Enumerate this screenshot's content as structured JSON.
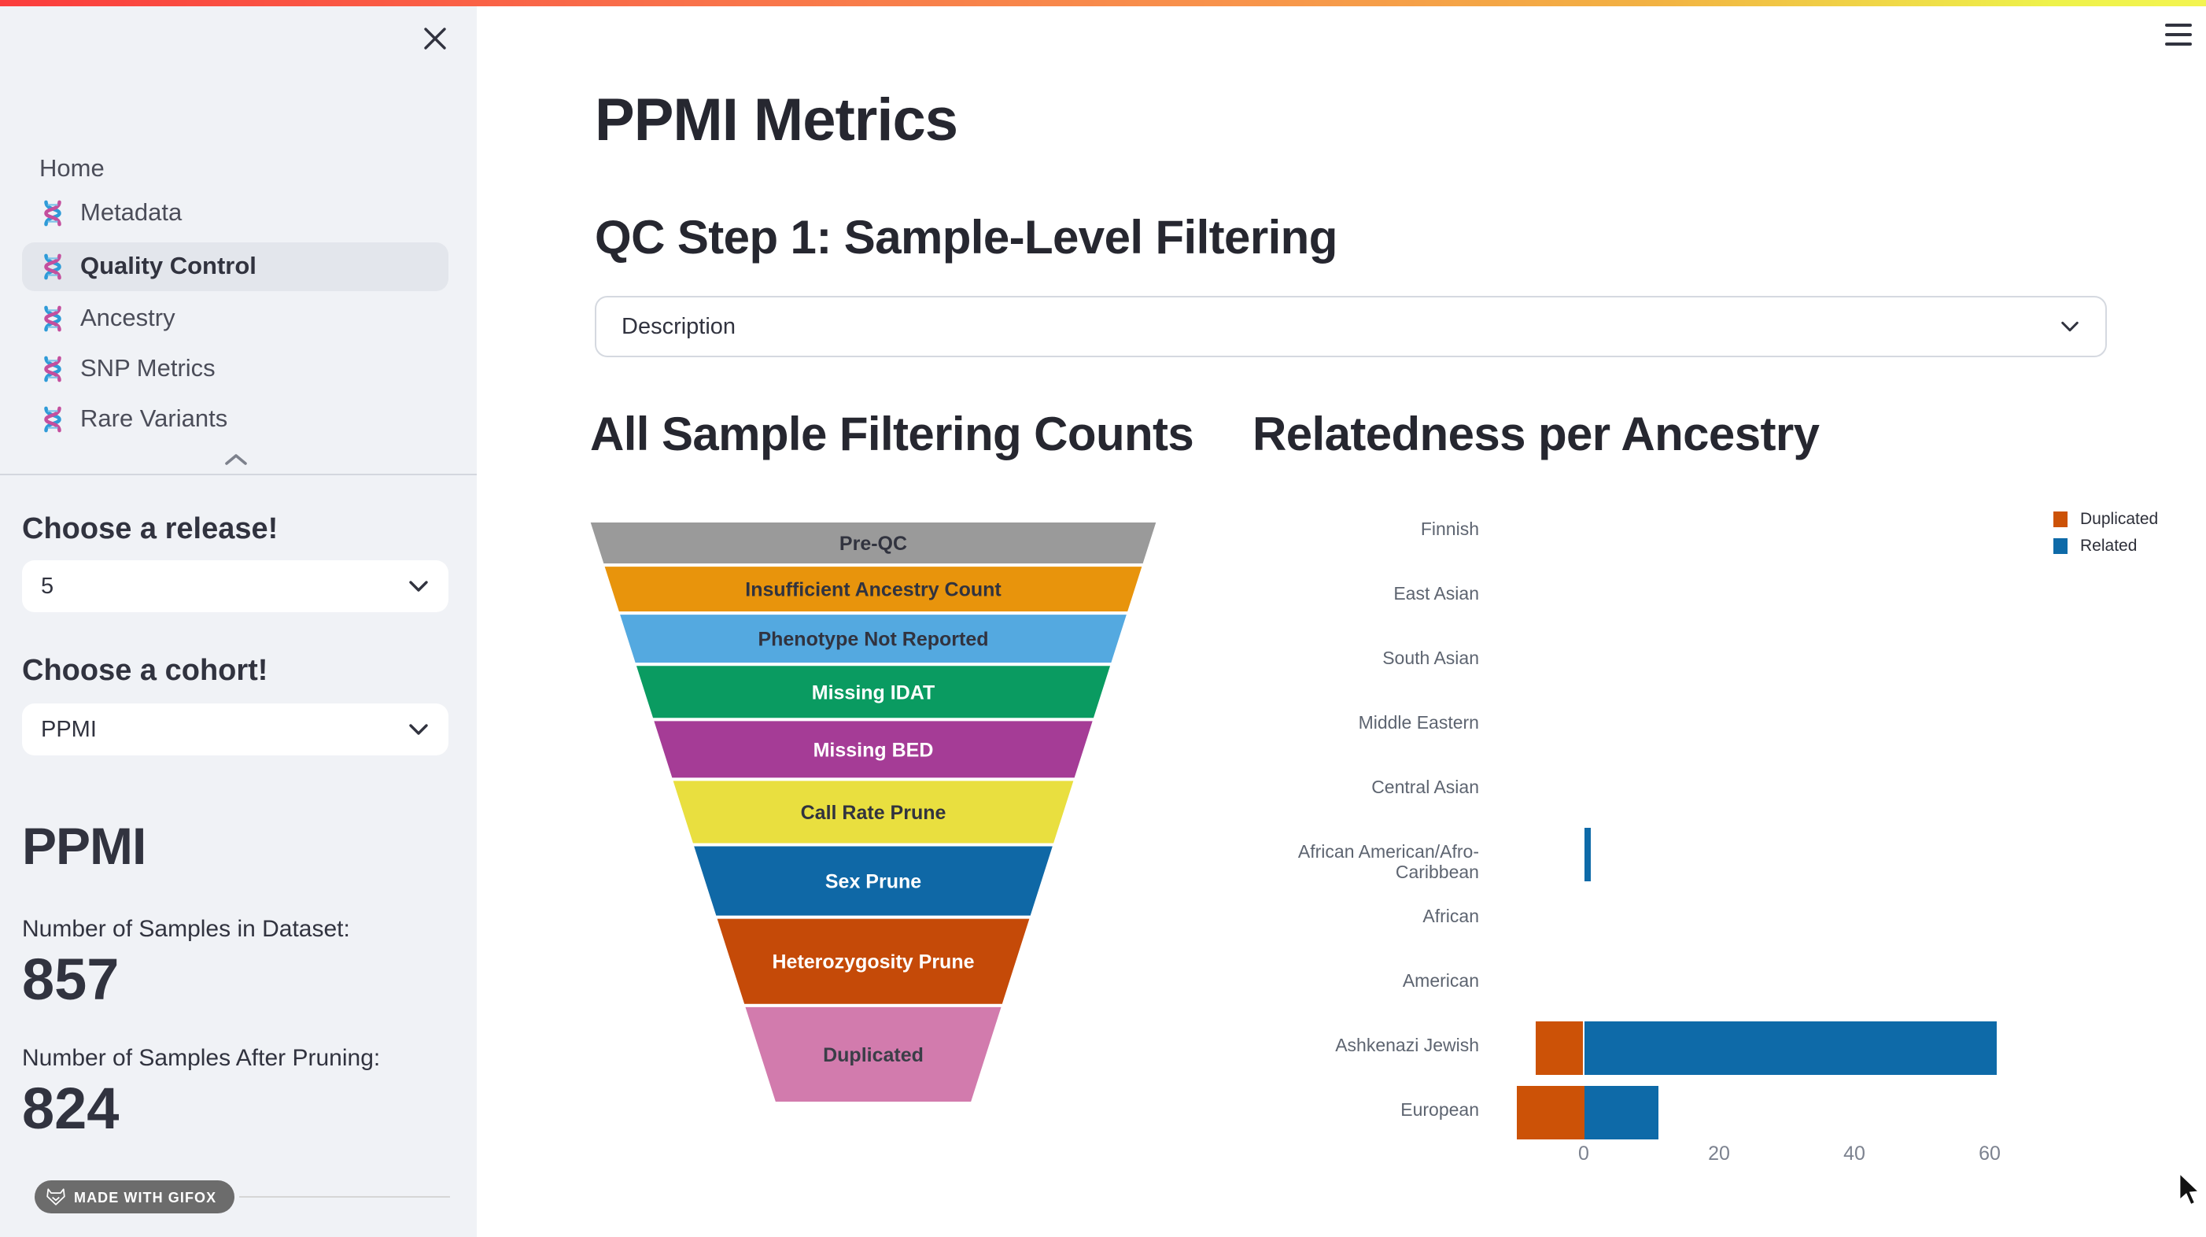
{
  "sidebar": {
    "nav": {
      "home_label": "Home",
      "items": [
        {
          "label": "Metadata",
          "active": false
        },
        {
          "label": "Quality Control",
          "active": true
        },
        {
          "label": "Ancestry",
          "active": false
        },
        {
          "label": "SNP Metrics",
          "active": false
        },
        {
          "label": "Rare Variants",
          "active": false
        }
      ]
    },
    "release_label": "Choose a release!",
    "release_value": "5",
    "cohort_label": "Choose a cohort!",
    "cohort_value": "PPMI",
    "cohort_heading": "PPMI",
    "samples_in_dataset_label": "Number of Samples in Dataset:",
    "samples_in_dataset_value": "857",
    "samples_after_pruning_label": "Number of Samples After Pruning:",
    "samples_after_pruning_value": "824",
    "badge_text": "MADE WITH GIFOX"
  },
  "main": {
    "title": "PPMI Metrics",
    "section_heading": "QC Step 1: Sample-Level Filtering",
    "expander_label": "Description",
    "left_chart_heading": "All Sample Filtering Counts",
    "right_chart_heading": "Relatedness per Ancestry"
  },
  "colors": {
    "decoration_gradient": [
      "#fb3d3d",
      "#f8924c",
      "#eef24a"
    ],
    "sidebar_bg": "#f0f2f6",
    "active_nav_bg": "#e3e6ec",
    "text": "#31333f",
    "duplicated_orange": "#cc5207",
    "related_blue": "#0e6aa8"
  },
  "chart_data": [
    {
      "type": "funnel",
      "title": "All Sample Filtering Counts",
      "stages": [
        "Pre-QC",
        "Insufficient Ancestry Count",
        "Phenotype Not Reported",
        "Missing IDAT",
        "Missing BED",
        "Call Rate Prune",
        "Sex Prune",
        "Heterozygosity Prune",
        "Duplicated"
      ],
      "colors": [
        "#9a9a9a",
        "#e8940c",
        "#54a9e0",
        "#0a9b61",
        "#a53c96",
        "#e9df3f",
        "#0f68a6",
        "#c54a08",
        "#d27bad"
      ],
      "label_colors": [
        "#31333f",
        "#31333f",
        "#31333f",
        "#ffffff",
        "#ffffff",
        "#31333f",
        "#ffffff",
        "#ffffff",
        "#3a3e47"
      ],
      "segment_height_fracs": [
        0.0758,
        0.0825,
        0.088,
        0.0947,
        0.1028,
        0.1123,
        0.1245,
        0.1516,
        0.1678
      ],
      "shape": {
        "top_width_frac": 1.0,
        "bottom_width_frac": 0.347
      },
      "values_shown": false
    },
    {
      "type": "bar",
      "orientation": "horizontal",
      "title": "Relatedness per Ancestry",
      "categories": [
        "Finnish",
        "East Asian",
        "South Asian",
        "Middle Eastern",
        "Central Asian",
        "African American/Afro-Caribbean",
        "African",
        "American",
        "Ashkenazi Jewish",
        "European"
      ],
      "series": [
        {
          "name": "Duplicated",
          "color": "#cc5207",
          "values": [
            0,
            0,
            0,
            0,
            0,
            0,
            0,
            0,
            -7,
            -10
          ]
        },
        {
          "name": "Related",
          "color": "#0e6aa8",
          "values": [
            0,
            0,
            0,
            0,
            0,
            1,
            0,
            0,
            61,
            11
          ]
        }
      ],
      "xticks": [
        0,
        20,
        40,
        60
      ],
      "xlim": [
        -17,
        76
      ],
      "legend_position": "top-right",
      "note": "Duplicated counts are drawn extending left of zero; Related counts extend right of zero"
    }
  ]
}
